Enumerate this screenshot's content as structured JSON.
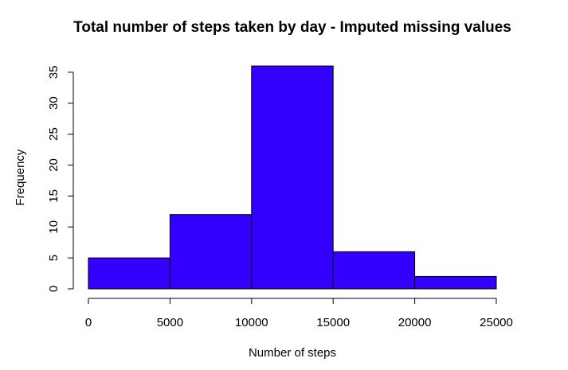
{
  "chart_data": {
    "type": "bar",
    "title": "Total number of steps taken by day - Imputed missing values",
    "xlabel": "Number of steps",
    "ylabel": "Frequency",
    "bins": [
      {
        "start": 0,
        "end": 5000,
        "count": 5
      },
      {
        "start": 5000,
        "end": 10000,
        "count": 12
      },
      {
        "start": 10000,
        "end": 15000,
        "count": 36
      },
      {
        "start": 15000,
        "end": 20000,
        "count": 6
      },
      {
        "start": 20000,
        "end": 25000,
        "count": 2
      }
    ],
    "xlim": [
      0,
      25000
    ],
    "ylim": [
      0,
      36
    ],
    "x_ticks": [
      0,
      5000,
      10000,
      15000,
      20000,
      25000
    ],
    "y_ticks": [
      0,
      5,
      10,
      15,
      20,
      25,
      30,
      35
    ],
    "bar_color": "#3300ff",
    "grid": false,
    "legend": "none"
  }
}
